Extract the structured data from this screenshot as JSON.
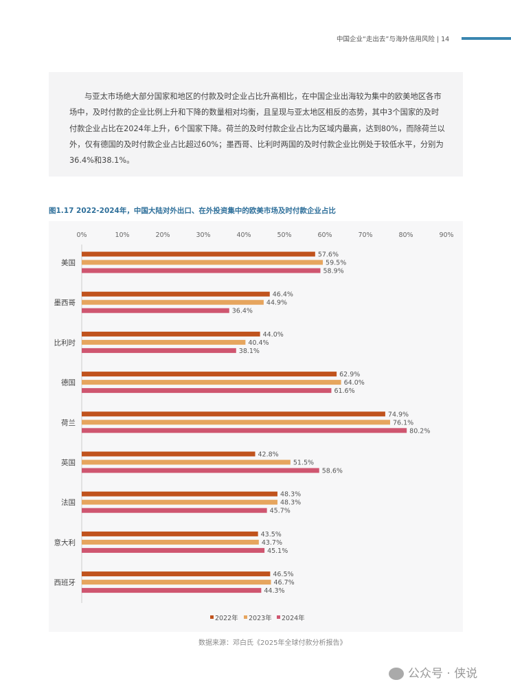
{
  "header": {
    "running_title": "中国企业“走出去”与海外信用风险 | 14"
  },
  "intro_text": "与亚太市场绝大部分国家和地区的付款及时企业占比升高相比，在中国企业出海较为集中的欧美地区各市场中，及时付款的企业比例上升和下降的数量相对均衡，且呈现与亚太地区相反的态势，其中3个国家的及时付款企业占比在2024年上升，6个国家下降。荷兰的及时付款企业占比为区域内最高，达到80%，而除荷兰以外，仅有德国的及时付款企业占比超过60%；墨西哥、比利时两国的及时付款企业比例处于较低水平，分别为36.4%和38.1%。",
  "chart_data": {
    "type": "bar",
    "orientation": "horizontal",
    "title": "图1.17 2022-2024年，中国大陆对外出口、在外投资集中的欧美市场及时付款企业占比",
    "xlabel": "",
    "ylabel": "",
    "xlim": [
      0,
      90
    ],
    "xticks": [
      "0%",
      "10%",
      "20%",
      "30%",
      "40%",
      "50%",
      "60%",
      "70%",
      "80%",
      "90%"
    ],
    "tick_values": [
      0,
      10,
      20,
      30,
      40,
      50,
      60,
      70,
      80,
      90
    ],
    "categories": [
      "美国",
      "墨西哥",
      "比利时",
      "德国",
      "荷兰",
      "英国",
      "法国",
      "意大利",
      "西班牙"
    ],
    "series": [
      {
        "name": "2022年",
        "color": "#c0531d",
        "values": [
          57.6,
          46.4,
          44.0,
          62.9,
          74.9,
          42.8,
          48.3,
          43.5,
          46.5
        ],
        "labels": [
          "57.6%",
          "46.4%",
          "44.0%",
          "62.9%",
          "74.9%",
          "42.8%",
          "48.3%",
          "43.5%",
          "46.5%"
        ]
      },
      {
        "name": "2023年",
        "color": "#e6a55e",
        "values": [
          59.5,
          44.9,
          40.4,
          64.0,
          76.1,
          51.5,
          48.3,
          43.7,
          46.7
        ],
        "labels": [
          "59.5%",
          "44.9%",
          "40.4%",
          "64.0%",
          "76.1%",
          "51.5%",
          "48.3%",
          "43.7%",
          "46.7%"
        ]
      },
      {
        "name": "2024年",
        "color": "#cf5670",
        "values": [
          58.9,
          36.4,
          38.1,
          61.6,
          80.2,
          58.6,
          45.7,
          45.1,
          44.3
        ],
        "labels": [
          "58.9%",
          "36.4%",
          "38.1%",
          "61.6%",
          "80.2%",
          "58.6%",
          "45.7%",
          "45.1%",
          "44.3%"
        ]
      }
    ],
    "legend": "bottom",
    "grid": false
  },
  "source": "数据来源：邓白氏《2025年全球付款分析报告》",
  "watermark": "公众号 · 侠说"
}
